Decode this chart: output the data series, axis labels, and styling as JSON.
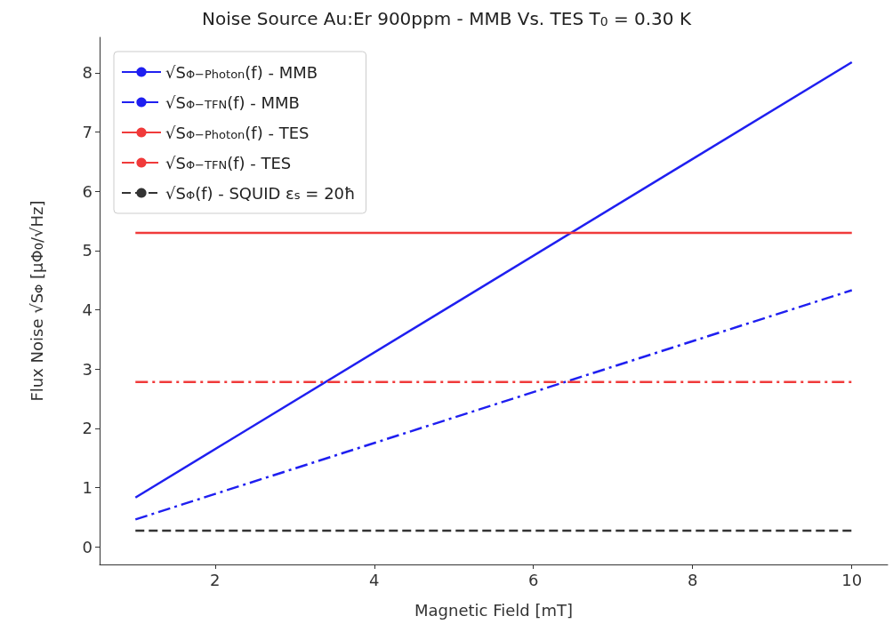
{
  "chart_data": {
    "type": "line",
    "title": "Noise Source Au:Er 900ppm - MMB Vs. TES T$_{0}$ = 0.30 K",
    "xlabel": "Magnetic Field [mT]",
    "ylabel": "Flux Noise √S$_{Φ}$ [μΦ$_{0}$/√Hz]",
    "x": [
      1,
      10
    ],
    "series": [
      {
        "name": "√S$_{Φ−Photon}$(f) - MMB",
        "color": "#1f1ff0",
        "values": [
          0.83,
          8.18
        ],
        "line_style": "solid"
      },
      {
        "name": "√S$_{Φ−TFN}$(f) - MMB",
        "color": "#1f1ff0",
        "values": [
          0.46,
          4.33
        ],
        "line_style": "dashdot"
      },
      {
        "name": "√S$_{Φ−Photon}$(f) - TES",
        "color": "#f03a3a",
        "values": [
          5.3,
          5.3
        ],
        "line_style": "solid"
      },
      {
        "name": "√S$_{Φ−TFN}$(f) - TES",
        "color": "#f03a3a",
        "values": [
          2.78,
          2.78
        ],
        "line_style": "dashdot"
      },
      {
        "name": "√S$_{Φ}$(f) - SQUID ε$_{s}$ = 20ħ",
        "color": "#333333",
        "values": [
          0.27,
          0.27
        ],
        "line_style": "dashed"
      }
    ],
    "xlim": [
      0.55,
      10.45
    ],
    "xticks": [
      2,
      4,
      6,
      8,
      10
    ],
    "ylim": [
      -0.3,
      8.6
    ],
    "yticks": [
      0,
      1,
      2,
      3,
      4,
      5,
      6,
      7,
      8
    ],
    "grid": false,
    "legend": "top left"
  }
}
